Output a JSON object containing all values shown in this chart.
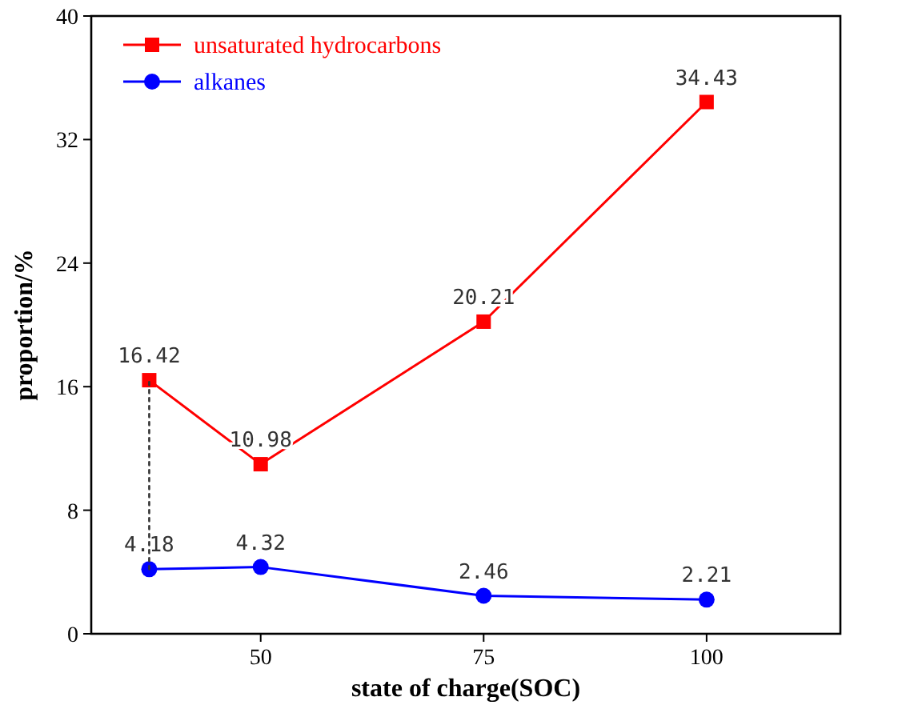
{
  "chart_data": {
    "type": "line",
    "xlabel": "state of charge(SOC)",
    "ylabel": "proportion/%",
    "x": [
      37.5,
      50,
      75,
      100
    ],
    "xlim": [
      31,
      115
    ],
    "xticks": [
      50,
      75,
      100
    ],
    "ylim": [
      0,
      40
    ],
    "yticks": [
      0,
      8,
      16,
      24,
      32,
      40
    ],
    "grid": false,
    "legend": "top left",
    "data_labels": true,
    "line_style": "solid",
    "series": [
      {
        "name": "unsaturated hydrocarbons",
        "color": "#ff0000",
        "marker": "square",
        "values": [
          16.42,
          10.98,
          20.21,
          34.43
        ]
      },
      {
        "name": "alkanes",
        "color": "#0000ff",
        "marker": "circle",
        "values": [
          4.18,
          4.32,
          2.46,
          2.21
        ]
      },
      {
        "type": "line",
        "x": [
          37.5,
          37.5
        ],
        "values": [
          4.18,
          16.42
        ],
        "color": "#333333",
        "marker": "none",
        "line_style": "dotted",
        "data_labels": false
      }
    ]
  }
}
